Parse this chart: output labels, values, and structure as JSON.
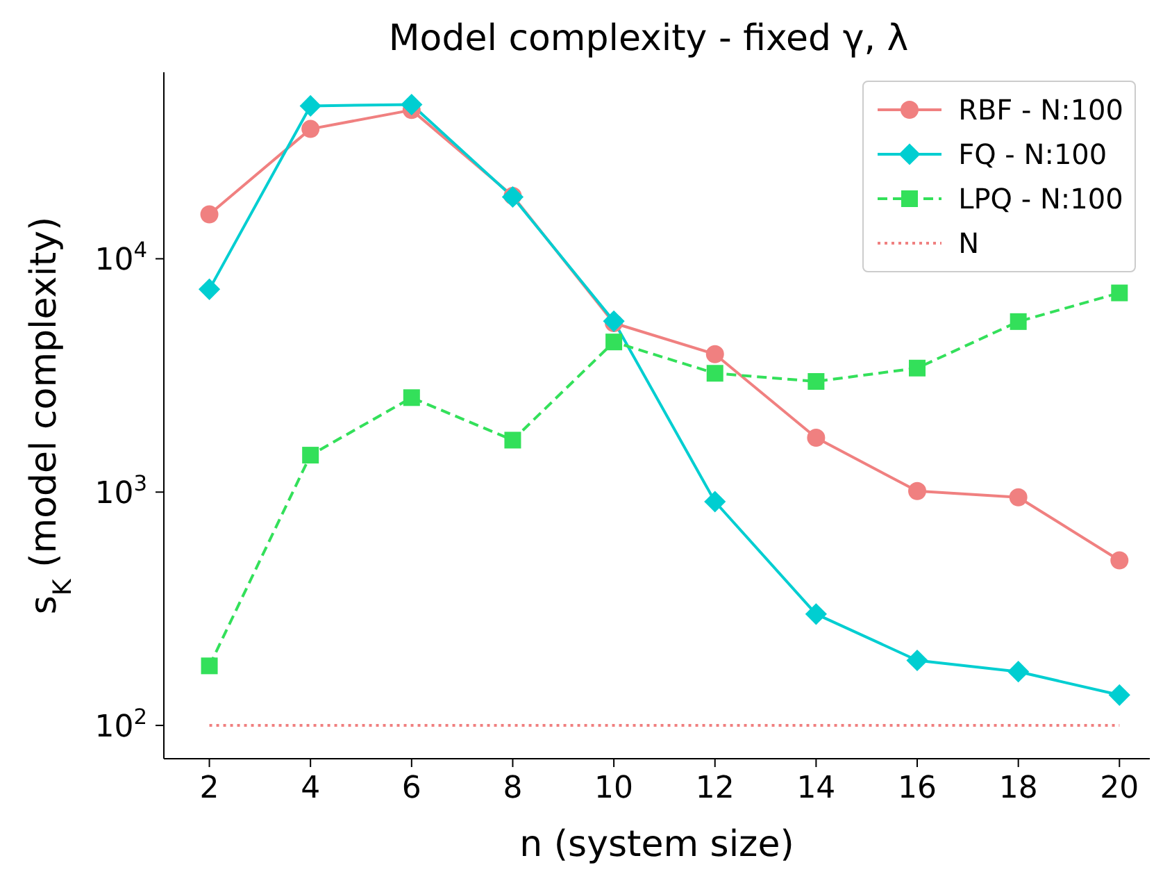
{
  "chart_data": {
    "type": "line",
    "title": "Model complexity - fixed γ, λ",
    "xlabel": "n (system size)",
    "ylabel": "s$_{K}$ (model complexity)",
    "x": [
      2,
      4,
      6,
      8,
      10,
      12,
      14,
      16,
      18,
      20
    ],
    "series": [
      {
        "name": "RBF - N:100",
        "color": "#f08080",
        "marker": "circle",
        "line_style": "solid",
        "values": [
          15500,
          36000,
          43400,
          18600,
          5300,
          3900,
          1710,
          1010,
          950,
          510
        ]
      },
      {
        "name": "FQ - N:100",
        "color": "#00ced1",
        "marker": "diamond",
        "line_style": "solid",
        "values": [
          7400,
          45200,
          45800,
          18400,
          5400,
          910,
          300,
          190,
          170,
          135
        ]
      },
      {
        "name": "LPQ - N:100",
        "color": "#33e05a",
        "marker": "square",
        "line_style": "dashed",
        "values": [
          180,
          1440,
          2540,
          1670,
          4400,
          3230,
          2980,
          3400,
          5380,
          7140
        ]
      },
      {
        "name": "N",
        "color": "#f08080",
        "marker": "none",
        "line_style": "dotted",
        "values": [
          100,
          100,
          100,
          100,
          100,
          100,
          100,
          100,
          100,
          100
        ]
      }
    ],
    "log": "y",
    "xlim": [
      1.1,
      20.6
    ],
    "ylim": [
      72,
      63000
    ],
    "xticks": [
      2,
      4,
      6,
      8,
      10,
      12,
      14,
      16,
      18,
      20
    ],
    "yticks": [
      {
        "value": 100,
        "label": "10$^{2}$"
      },
      {
        "value": 1000,
        "label": "10$^{3}$"
      },
      {
        "value": 10000,
        "label": "10$^{4}$"
      }
    ],
    "grid": false,
    "legend": "top right"
  }
}
